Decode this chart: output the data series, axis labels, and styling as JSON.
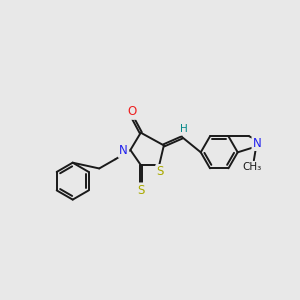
{
  "bg_color": "#e8e8e8",
  "bond_color": "#1a1a1a",
  "N_color": "#2020ee",
  "O_color": "#ee2020",
  "S_color": "#aaaa00",
  "H_color": "#008888",
  "lw": 1.4,
  "fs": 8.5,
  "fs_small": 7.5,
  "figsize": [
    3.0,
    3.0
  ],
  "dpi": 100,
  "xlim": [
    30,
    290
  ],
  "ylim": [
    60,
    260
  ]
}
